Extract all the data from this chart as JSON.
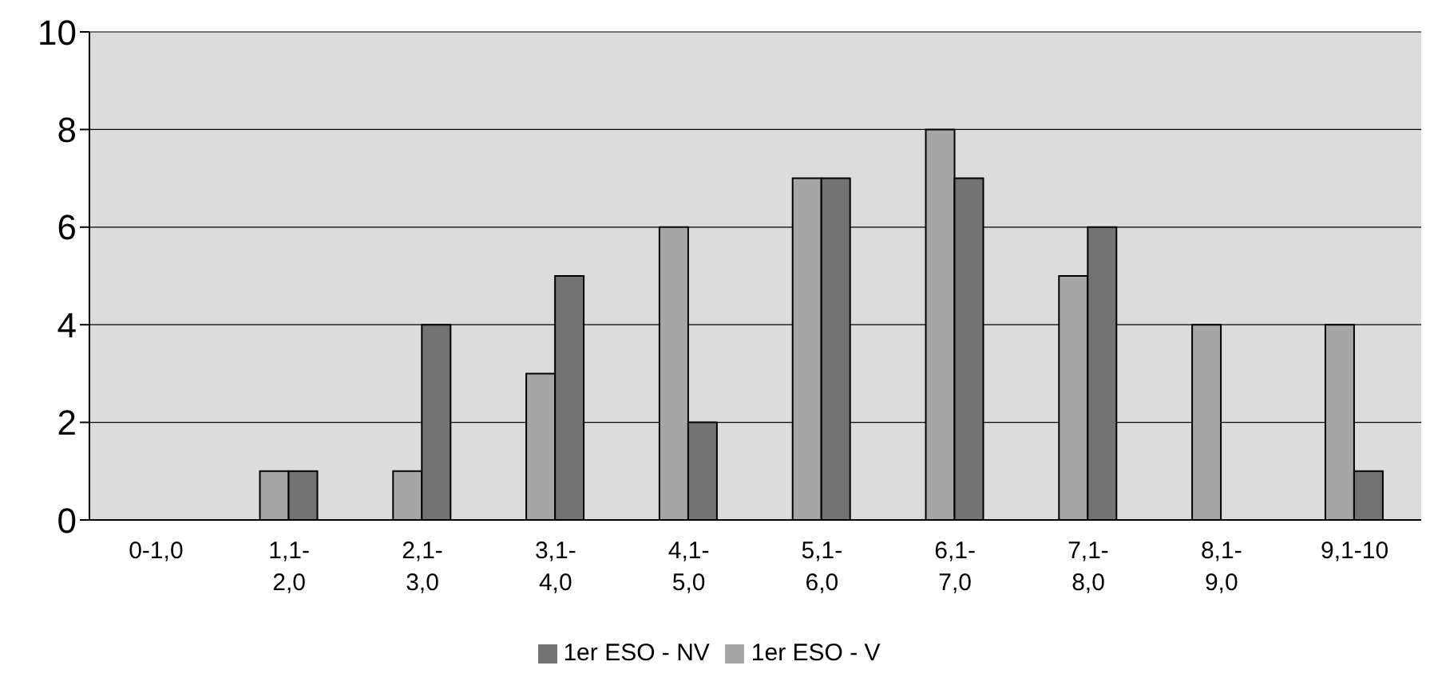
{
  "chart_data": {
    "type": "bar",
    "categories": [
      "0-1,0",
      "1,1-2,0",
      "2,1-3,0",
      "3,1-4,0",
      "4,1-5,0",
      "5,1-6,0",
      "6,1-7,0",
      "7,1-8,0",
      "8,1-9,0",
      "9,1-10"
    ],
    "series": [
      {
        "name": "1er ESO - V",
        "color": "#a6a6a6",
        "values": [
          0,
          1,
          1,
          3,
          6,
          7,
          8,
          5,
          4,
          4
        ]
      },
      {
        "name": "1er ESO - NV",
        "color": "#737373",
        "values": [
          0,
          1,
          4,
          5,
          2,
          7,
          7,
          6,
          0,
          1
        ]
      }
    ],
    "ylim": [
      0,
      10
    ],
    "yticks": [
      0,
      2,
      4,
      6,
      8,
      10
    ],
    "grid": "y",
    "legend": "bottom"
  }
}
